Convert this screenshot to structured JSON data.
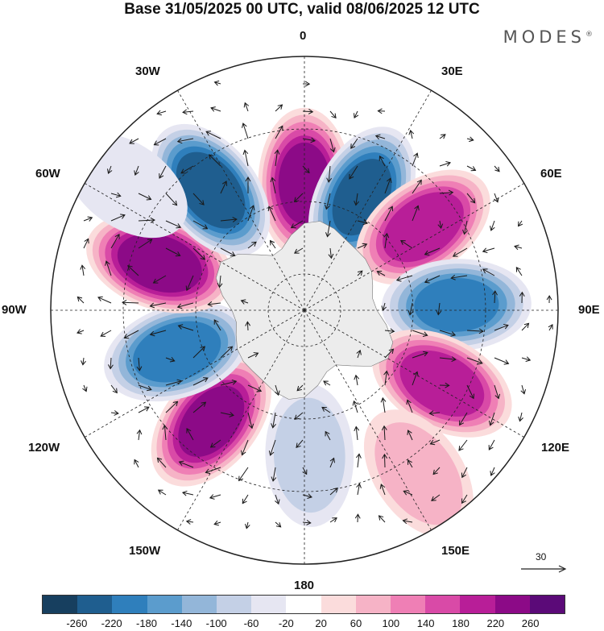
{
  "title": "Base 31/05/2025 00 UTC, valid 08/06/2025 12 UTC",
  "brand": {
    "name": "MODES",
    "mark": "®"
  },
  "longitude_labels": {
    "top": "0",
    "bottom": "180",
    "left": "90W",
    "right": "90E",
    "w30": "30W",
    "w60": "60W",
    "w120": "120W",
    "w150": "150W",
    "e30": "30E",
    "e60": "60E",
    "e120": "120E",
    "e150": "150E"
  },
  "reference_vector": "30",
  "colorbar": {
    "colors": [
      "#173f5f",
      "#1f5e8f",
      "#2f7fbc",
      "#5b9ccd",
      "#93b6d9",
      "#c4d0e6",
      "#e6e6f2",
      "#ffffff",
      "#fbdcdc",
      "#f6b3c6",
      "#ef7fb5",
      "#d94aa7",
      "#b81e98",
      "#8c0a87",
      "#5b0a78"
    ],
    "tick_labels": [
      "-260",
      "-220",
      "-180",
      "-140",
      "-100",
      "-60",
      "-20",
      "20",
      "60",
      "100",
      "140",
      "180",
      "220",
      "260"
    ]
  },
  "anomaly_centers": [
    {
      "lon": 0,
      "lat": -55,
      "value": 240
    },
    {
      "lon": 27,
      "lat": -55,
      "value": -240
    },
    {
      "lon": 55,
      "lat": -50,
      "value": 220
    },
    {
      "lon": 88,
      "lat": -48,
      "value": -200
    },
    {
      "lon": 118,
      "lat": -47,
      "value": 220
    },
    {
      "lon": 145,
      "lat": -35,
      "value": 100
    },
    {
      "lon": 178,
      "lat": -50,
      "value": -100
    },
    {
      "lon": -140,
      "lat": -50,
      "value": 240
    },
    {
      "lon": -108,
      "lat": -53,
      "value": -220
    },
    {
      "lon": -72,
      "lat": -48,
      "value": 260
    },
    {
      "lon": -38,
      "lat": -48,
      "value": -260
    },
    {
      "lon": -55,
      "lat": -30,
      "value": -60
    }
  ]
}
